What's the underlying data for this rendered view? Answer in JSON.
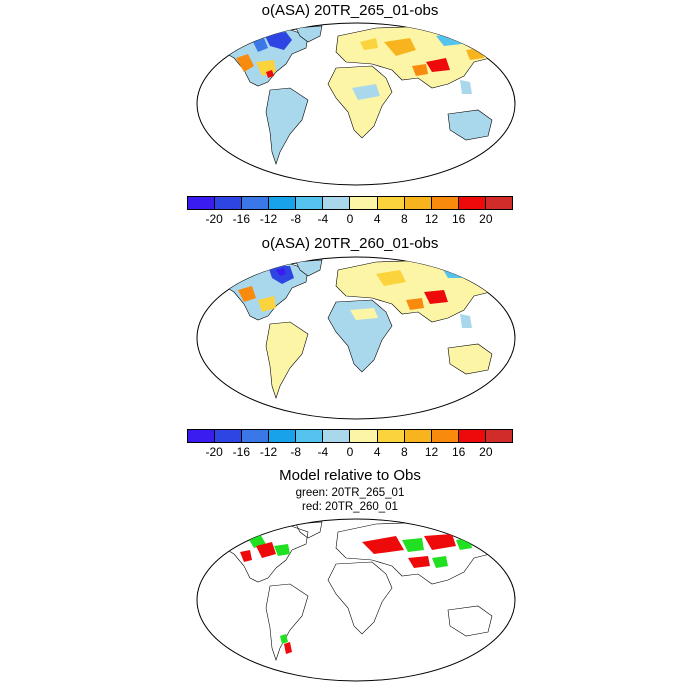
{
  "panel1": {
    "title": "o(ASA) 20TR_265_01-obs"
  },
  "panel2": {
    "title": "o(ASA) 20TR_260_01-obs"
  },
  "panel3": {
    "title": "Model relative to Obs",
    "legend_green": "green: 20TR_265_01",
    "legend_red": "red: 20TR_260_01"
  },
  "colorbar": {
    "labels": [
      "-20",
      "-16",
      "-12",
      "-8",
      "-4",
      "0",
      "4",
      "8",
      "12",
      "16",
      "20"
    ],
    "colors": [
      "#3a1cf0",
      "#2f45e3",
      "#3a78e8",
      "#17a2ea",
      "#54c4ef",
      "#a9d8ec",
      "#fdf5a6",
      "#fbd33d",
      "#f8b41e",
      "#f88b0d",
      "#ee0a0a",
      "#d22c2a"
    ]
  },
  "colors": {
    "green": "#21e021",
    "red": "#ee0a0a",
    "land_positive": "#fdf5a6",
    "land_negative": "#a9d8ec"
  }
}
